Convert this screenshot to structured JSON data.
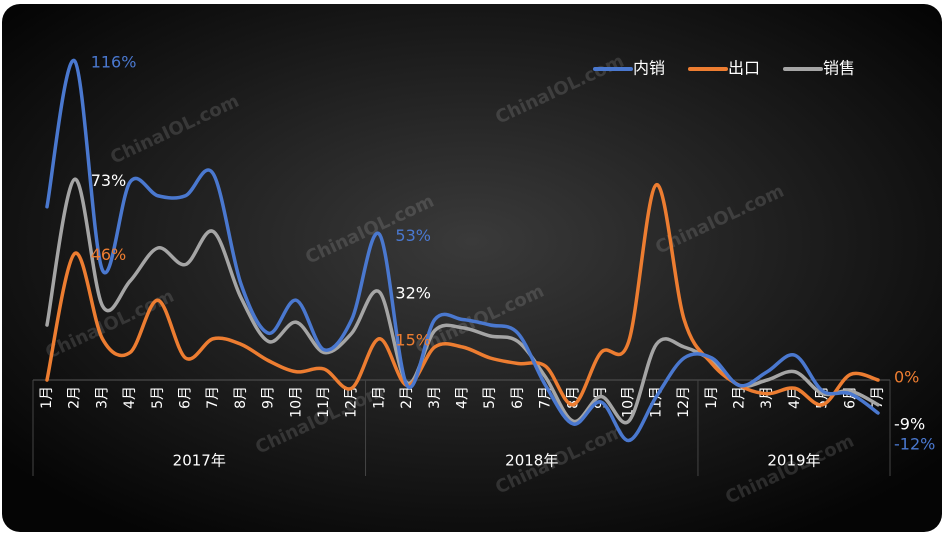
{
  "chart_data": {
    "type": "line",
    "watermark": "ChinaIOL.com",
    "categories": [
      "1月",
      "2月",
      "3月",
      "4月",
      "5月",
      "6月",
      "7月",
      "8月",
      "9月",
      "10月",
      "11月",
      "12月",
      "1月",
      "2月",
      "3月",
      "4月",
      "5月",
      "6月",
      "7月",
      "8月",
      "9月",
      "10月",
      "11月",
      "12月",
      "1月",
      "2月",
      "3月",
      "4月",
      "5月",
      "6月",
      "7月"
    ],
    "groups": [
      {
        "label": "2017年",
        "span": 12
      },
      {
        "label": "2018年",
        "span": 12
      },
      {
        "label": "2019年",
        "span": 7
      }
    ],
    "ylim": [
      -30,
      120
    ],
    "series": [
      {
        "name": "内销",
        "color": "#4a78cf",
        "values": [
          63,
          116,
          40,
          72,
          67,
          67,
          75,
          35,
          17,
          29,
          11,
          22,
          53,
          -2,
          22,
          22,
          20,
          17,
          -2,
          -16,
          -8,
          -22,
          -6,
          8,
          8,
          -2,
          3,
          9,
          -4,
          -5,
          -12
        ],
        "value_labels": [
          null,
          "116%",
          null,
          null,
          null,
          null,
          null,
          null,
          null,
          null,
          null,
          null,
          "53%",
          null,
          null,
          null,
          null,
          null,
          null,
          null,
          null,
          null,
          null,
          null,
          null,
          null,
          null,
          null,
          null,
          null,
          "-12%"
        ]
      },
      {
        "name": "出口",
        "color": "#ed7d31",
        "values": [
          0,
          46,
          15,
          10,
          29,
          8,
          15,
          13,
          7,
          3,
          4,
          -3,
          15,
          -2,
          12,
          12,
          8,
          6,
          5,
          -9,
          10,
          14,
          71,
          22,
          6,
          -2,
          -5,
          -3,
          -9,
          2,
          0
        ],
        "value_labels": [
          null,
          "46%",
          null,
          null,
          null,
          null,
          null,
          null,
          null,
          null,
          null,
          null,
          "15%",
          null,
          null,
          null,
          null,
          null,
          null,
          null,
          null,
          null,
          null,
          null,
          null,
          null,
          null,
          null,
          null,
          null,
          "0%"
        ]
      },
      {
        "name": "销售",
        "color": "#a5a5a5",
        "values": [
          20,
          73,
          27,
          36,
          48,
          42,
          54,
          30,
          14,
          21,
          10,
          17,
          32,
          -1,
          18,
          19,
          16,
          14,
          1,
          -15,
          -6,
          -15,
          13,
          12,
          7,
          -2,
          0,
          3,
          -5,
          -4,
          -9
        ],
        "value_labels": [
          null,
          "73%",
          null,
          null,
          null,
          null,
          null,
          null,
          null,
          null,
          null,
          null,
          "32%",
          null,
          null,
          null,
          null,
          null,
          null,
          null,
          null,
          null,
          null,
          null,
          null,
          null,
          null,
          null,
          null,
          null,
          "-9%"
        ]
      }
    ]
  }
}
